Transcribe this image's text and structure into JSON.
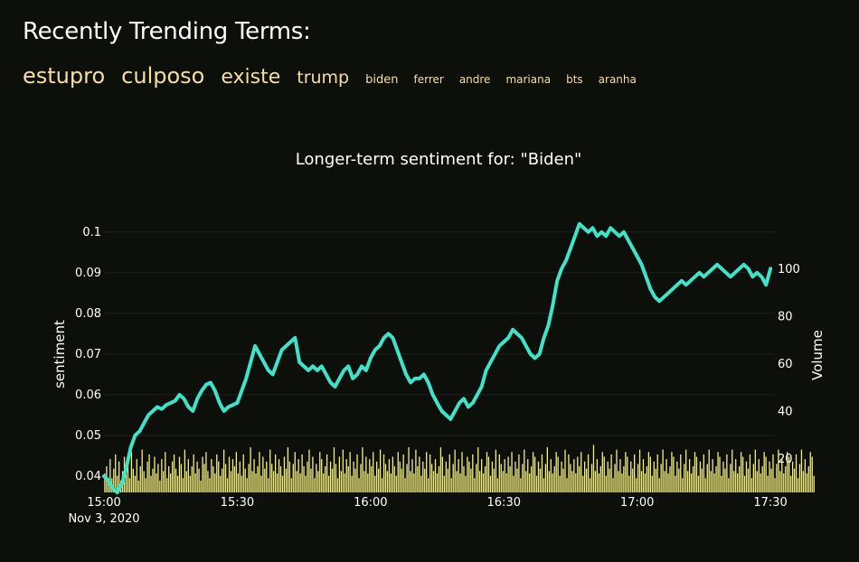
{
  "header": {
    "title": "Recently Trending Terms:",
    "terms": [
      {
        "label": "estupro",
        "size": 24
      },
      {
        "label": "culposo",
        "size": 24
      },
      {
        "label": "existe",
        "size": 22
      },
      {
        "label": "trump",
        "size": 19
      },
      {
        "label": "biden",
        "size": 13
      },
      {
        "label": "ferrer",
        "size": 12
      },
      {
        "label": "andre",
        "size": 12
      },
      {
        "label": "mariana",
        "size": 12
      },
      {
        "label": "bts",
        "size": 12
      },
      {
        "label": "aranha",
        "size": 12
      }
    ]
  },
  "colors": {
    "background": "#0c0f0a",
    "term": "#f6dfa0",
    "sentiment_line": "#3fe3c9",
    "volume_bar": "#f5ef7d",
    "grid": "#1e221c"
  },
  "chart_data": {
    "type": "line",
    "title": "Longer-term sentiment for: \"Biden\"",
    "xlabel": "",
    "ylabel": "sentiment",
    "y2label": "Volume",
    "x_range": [
      "2020-11-03 15:00",
      "2020-11-03 17:31"
    ],
    "x_ticks": [
      {
        "t": "2020-11-03 15:00",
        "label": "15:00",
        "sublabel": "Nov 3, 2020"
      },
      {
        "t": "2020-11-03 15:30",
        "label": "15:30"
      },
      {
        "t": "2020-11-03 16:00",
        "label": "16:00"
      },
      {
        "t": "2020-11-03 16:30",
        "label": "16:30"
      },
      {
        "t": "2020-11-03 17:00",
        "label": "17:00"
      },
      {
        "t": "2020-11-03 17:30",
        "label": "17:30"
      }
    ],
    "ylim": [
      0.036,
      0.1055
    ],
    "y_ticks": [
      "0.04",
      "0.05",
      "0.06",
      "0.07",
      "0.08",
      "0.09",
      "0.1"
    ],
    "y2lim": [
      6,
      125
    ],
    "y2_ticks": [
      "20",
      "40",
      "60",
      "80",
      "100"
    ],
    "grid": true,
    "series": [
      {
        "kind": "line",
        "axis": "y",
        "points": [
          [
            "15:00",
            0.04
          ],
          [
            "15:01",
            0.039
          ],
          [
            "15:02",
            0.037
          ],
          [
            "15:03",
            0.036
          ],
          [
            "15:04",
            0.038
          ],
          [
            "15:05",
            0.042
          ],
          [
            "15:06",
            0.047
          ],
          [
            "15:07",
            0.05
          ],
          [
            "15:08",
            0.051
          ],
          [
            "15:09",
            0.053
          ],
          [
            "15:10",
            0.055
          ],
          [
            "15:11",
            0.056
          ],
          [
            "15:12",
            0.057
          ],
          [
            "15:13",
            0.0565
          ],
          [
            "15:14",
            0.0575
          ],
          [
            "15:15",
            0.058
          ],
          [
            "15:16",
            0.0585
          ],
          [
            "15:17",
            0.06
          ],
          [
            "15:18",
            0.059
          ],
          [
            "15:19",
            0.057
          ],
          [
            "15:20",
            0.056
          ],
          [
            "15:21",
            0.059
          ],
          [
            "15:22",
            0.061
          ],
          [
            "15:23",
            0.0625
          ],
          [
            "15:24",
            0.063
          ],
          [
            "15:25",
            0.061
          ],
          [
            "15:26",
            0.058
          ],
          [
            "15:27",
            0.056
          ],
          [
            "15:28",
            0.057
          ],
          [
            "15:29",
            0.0575
          ],
          [
            "15:30",
            0.058
          ],
          [
            "15:31",
            0.061
          ],
          [
            "15:32",
            0.064
          ],
          [
            "15:33",
            0.068
          ],
          [
            "15:34",
            0.072
          ],
          [
            "15:35",
            0.07
          ],
          [
            "15:36",
            0.068
          ],
          [
            "15:37",
            0.066
          ],
          [
            "15:38",
            0.065
          ],
          [
            "15:39",
            0.068
          ],
          [
            "15:40",
            0.071
          ],
          [
            "15:41",
            0.072
          ],
          [
            "15:42",
            0.073
          ],
          [
            "15:43",
            0.074
          ],
          [
            "15:44",
            0.068
          ],
          [
            "15:45",
            0.067
          ],
          [
            "15:46",
            0.066
          ],
          [
            "15:47",
            0.067
          ],
          [
            "15:48",
            0.066
          ],
          [
            "15:49",
            0.067
          ],
          [
            "15:50",
            0.065
          ],
          [
            "15:51",
            0.063
          ],
          [
            "15:52",
            0.062
          ],
          [
            "15:53",
            0.064
          ],
          [
            "15:54",
            0.066
          ],
          [
            "15:55",
            0.067
          ],
          [
            "15:56",
            0.064
          ],
          [
            "15:57",
            0.065
          ],
          [
            "15:58",
            0.067
          ],
          [
            "15:59",
            0.066
          ],
          [
            "16:00",
            0.069
          ],
          [
            "16:01",
            0.071
          ],
          [
            "16:02",
            0.072
          ],
          [
            "16:03",
            0.074
          ],
          [
            "16:04",
            0.075
          ],
          [
            "16:05",
            0.074
          ],
          [
            "16:06",
            0.071
          ],
          [
            "16:07",
            0.068
          ],
          [
            "16:08",
            0.065
          ],
          [
            "16:09",
            0.063
          ],
          [
            "16:10",
            0.064
          ],
          [
            "16:11",
            0.064
          ],
          [
            "16:12",
            0.065
          ],
          [
            "16:13",
            0.063
          ],
          [
            "16:14",
            0.06
          ],
          [
            "16:15",
            0.058
          ],
          [
            "16:16",
            0.056
          ],
          [
            "16:17",
            0.055
          ],
          [
            "16:18",
            0.054
          ],
          [
            "16:19",
            0.056
          ],
          [
            "16:20",
            0.058
          ],
          [
            "16:21",
            0.059
          ],
          [
            "16:22",
            0.057
          ],
          [
            "16:23",
            0.058
          ],
          [
            "16:24",
            0.06
          ],
          [
            "16:25",
            0.062
          ],
          [
            "16:26",
            0.066
          ],
          [
            "16:27",
            0.068
          ],
          [
            "16:28",
            0.07
          ],
          [
            "16:29",
            0.072
          ],
          [
            "16:30",
            0.073
          ],
          [
            "16:31",
            0.074
          ],
          [
            "16:32",
            0.076
          ],
          [
            "16:33",
            0.075
          ],
          [
            "16:34",
            0.074
          ],
          [
            "16:35",
            0.072
          ],
          [
            "16:36",
            0.07
          ],
          [
            "16:37",
            0.069
          ],
          [
            "16:38",
            0.07
          ],
          [
            "16:39",
            0.074
          ],
          [
            "16:40",
            0.077
          ],
          [
            "16:41",
            0.082
          ],
          [
            "16:42",
            0.088
          ],
          [
            "16:43",
            0.091
          ],
          [
            "16:44",
            0.093
          ],
          [
            "16:45",
            0.096
          ],
          [
            "16:46",
            0.099
          ],
          [
            "16:47",
            0.102
          ],
          [
            "16:48",
            0.101
          ],
          [
            "16:49",
            0.1
          ],
          [
            "16:50",
            0.101
          ],
          [
            "16:51",
            0.099
          ],
          [
            "16:52",
            0.1
          ],
          [
            "16:53",
            0.099
          ],
          [
            "16:54",
            0.101
          ],
          [
            "16:55",
            0.1
          ],
          [
            "16:56",
            0.099
          ],
          [
            "16:57",
            0.1
          ],
          [
            "16:58",
            0.098
          ],
          [
            "16:59",
            0.096
          ],
          [
            "17:00",
            0.094
          ],
          [
            "17:01",
            0.092
          ],
          [
            "17:02",
            0.089
          ],
          [
            "17:03",
            0.086
          ],
          [
            "17:04",
            0.084
          ],
          [
            "17:05",
            0.083
          ],
          [
            "17:06",
            0.084
          ],
          [
            "17:07",
            0.085
          ],
          [
            "17:08",
            0.086
          ],
          [
            "17:09",
            0.087
          ],
          [
            "17:10",
            0.088
          ],
          [
            "17:11",
            0.087
          ],
          [
            "17:12",
            0.088
          ],
          [
            "17:13",
            0.089
          ],
          [
            "17:14",
            0.09
          ],
          [
            "17:15",
            0.089
          ],
          [
            "17:16",
            0.09
          ],
          [
            "17:17",
            0.091
          ],
          [
            "17:18",
            0.092
          ],
          [
            "17:19",
            0.091
          ],
          [
            "17:20",
            0.09
          ],
          [
            "17:21",
            0.089
          ],
          [
            "17:22",
            0.09
          ],
          [
            "17:23",
            0.091
          ],
          [
            "17:24",
            0.092
          ],
          [
            "17:25",
            0.091
          ],
          [
            "17:26",
            0.089
          ],
          [
            "17:27",
            0.09
          ],
          [
            "17:28",
            0.089
          ],
          [
            "17:29",
            0.087
          ],
          [
            "17:30",
            0.091
          ]
        ]
      },
      {
        "kind": "bar",
        "axis": "y2",
        "start": "15:00",
        "step_seconds": 24,
        "values": [
          14,
          17,
          10,
          20,
          12,
          16,
          22,
          13,
          19,
          11,
          15,
          21,
          14,
          18,
          12,
          23,
          16,
          13,
          20,
          11,
          17,
          24,
          15,
          12,
          19,
          22,
          13,
          16,
          21,
          14,
          18,
          11,
          20,
          15,
          23,
          12,
          17,
          14,
          19,
          22,
          16,
          13,
          21,
          18,
          12,
          24,
          15,
          20,
          13,
          17,
          22,
          14,
          19,
          16,
          11,
          21,
          18,
          23,
          15,
          12,
          20,
          17,
          14,
          22,
          19,
          13,
          16,
          24,
          18,
          12,
          21,
          15,
          20,
          17,
          23,
          14,
          19,
          13,
          22,
          16,
          12,
          18,
          25,
          15,
          20,
          14,
          17,
          23,
          13,
          21,
          16,
          19,
          12,
          24,
          18,
          15,
          22,
          14,
          20,
          17,
          13,
          21,
          16,
          25,
          19,
          12,
          18,
          23,
          15,
          20,
          14,
          22,
          17,
          13,
          19,
          24,
          16,
          21,
          12,
          18,
          15,
          23,
          20,
          14,
          17,
          22,
          13,
          19,
          16,
          25,
          18,
          12,
          21,
          15,
          24,
          14,
          20,
          17,
          23,
          13,
          19,
          16,
          22,
          12,
          18,
          25,
          15,
          21,
          14,
          20,
          17,
          23,
          13,
          19,
          16,
          24,
          12,
          22,
          18,
          15,
          20,
          14,
          21,
          17,
          13,
          23,
          19,
          16,
          22,
          12,
          18,
          25,
          15,
          20,
          14,
          24,
          17,
          21,
          13,
          19,
          16,
          23,
          12,
          22,
          18,
          15,
          20,
          14,
          17,
          25,
          21,
          13,
          19,
          16,
          22,
          12,
          18,
          24,
          15,
          20,
          14,
          23,
          17,
          13,
          21,
          19,
          16,
          22,
          12,
          18,
          25,
          15,
          20,
          14,
          17,
          23,
          21,
          13,
          19,
          16,
          24,
          12,
          22,
          18,
          15,
          20,
          14,
          21,
          17,
          23,
          13,
          19,
          16,
          22,
          12,
          18,
          24,
          15,
          20,
          14,
          17,
          23,
          21,
          13,
          19,
          16,
          22,
          12,
          18,
          25,
          15,
          20,
          14,
          17,
          23,
          21,
          13,
          19,
          16,
          24,
          12,
          22,
          18,
          15,
          20,
          14,
          21,
          17,
          23,
          13,
          19,
          16,
          22,
          12,
          18,
          26,
          15,
          20,
          14,
          17,
          23,
          21,
          13,
          19,
          16,
          22,
          12,
          18,
          24,
          15,
          20,
          14,
          17,
          23,
          21,
          13,
          19,
          16,
          22,
          12,
          18,
          24,
          15,
          20,
          14,
          17,
          23,
          21,
          13,
          19,
          16,
          22,
          12,
          18,
          24,
          15,
          20,
          14,
          17,
          23,
          21,
          13,
          19,
          16,
          22,
          12,
          18,
          24,
          15,
          20,
          14,
          17,
          23,
          21,
          13,
          19,
          16,
          22,
          12,
          18,
          24,
          15,
          20,
          14,
          17,
          23,
          21,
          13,
          19,
          16,
          22,
          12,
          18,
          24,
          15,
          20,
          14,
          17,
          23,
          21,
          13,
          19,
          16,
          22,
          12,
          18,
          24,
          15,
          20,
          14,
          17,
          23,
          21,
          13,
          19,
          16,
          22,
          12,
          18,
          24,
          15,
          20,
          14,
          17,
          23,
          21,
          13,
          19,
          16,
          22,
          12,
          18,
          24,
          15,
          20,
          14,
          17,
          23,
          21,
          13
        ]
      }
    ]
  }
}
